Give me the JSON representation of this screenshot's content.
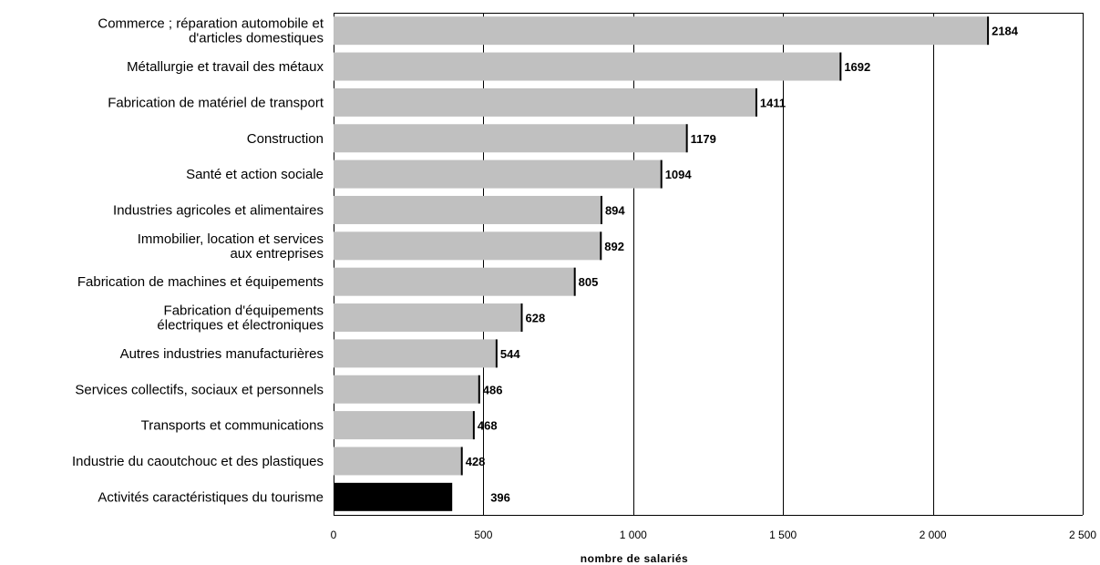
{
  "chart_data": {
    "type": "bar",
    "orientation": "horizontal",
    "categories": [
      [
        "Commerce ; réparation automobile et",
        "d'articles domestiques"
      ],
      [
        "Métallurgie et travail des métaux"
      ],
      [
        "Fabrication de matériel de transport"
      ],
      [
        "Construction"
      ],
      [
        "Santé et action sociale"
      ],
      [
        "Industries agricoles et alimentaires"
      ],
      [
        "Immobilier, location et services",
        "aux entreprises"
      ],
      [
        "Fabrication de machines et équipements"
      ],
      [
        "Fabrication d'équipements",
        "électriques et électroniques"
      ],
      [
        "Autres industries manufacturières"
      ],
      [
        "Services collectifs, sociaux et personnels"
      ],
      [
        "Transports et communications"
      ],
      [
        "Industrie du caoutchouc et des plastiques"
      ],
      [
        "Activités caractéristiques du tourisme"
      ]
    ],
    "values": [
      2184,
      1692,
      1411,
      1179,
      1094,
      894,
      892,
      805,
      628,
      544,
      486,
      468,
      428,
      396
    ],
    "value_labels": [
      "2184",
      "1692",
      "1411",
      "1179",
      "1094",
      "894",
      "892",
      "805",
      "628",
      "544",
      "486",
      "468",
      "428",
      "396"
    ],
    "highlight_index": 13,
    "colors": {
      "bar": "#c0c0c0",
      "highlight": "#000000",
      "edge": "#000000"
    },
    "xlim": [
      0,
      2500
    ],
    "xticks": [
      0,
      500,
      1000,
      1500,
      2000,
      2500
    ],
    "xtick_labels": [
      "0",
      "500",
      "1 000",
      "1 500",
      "2 000",
      "2 500"
    ],
    "xlabel": "nombre de salariés",
    "grid": "vertical"
  }
}
